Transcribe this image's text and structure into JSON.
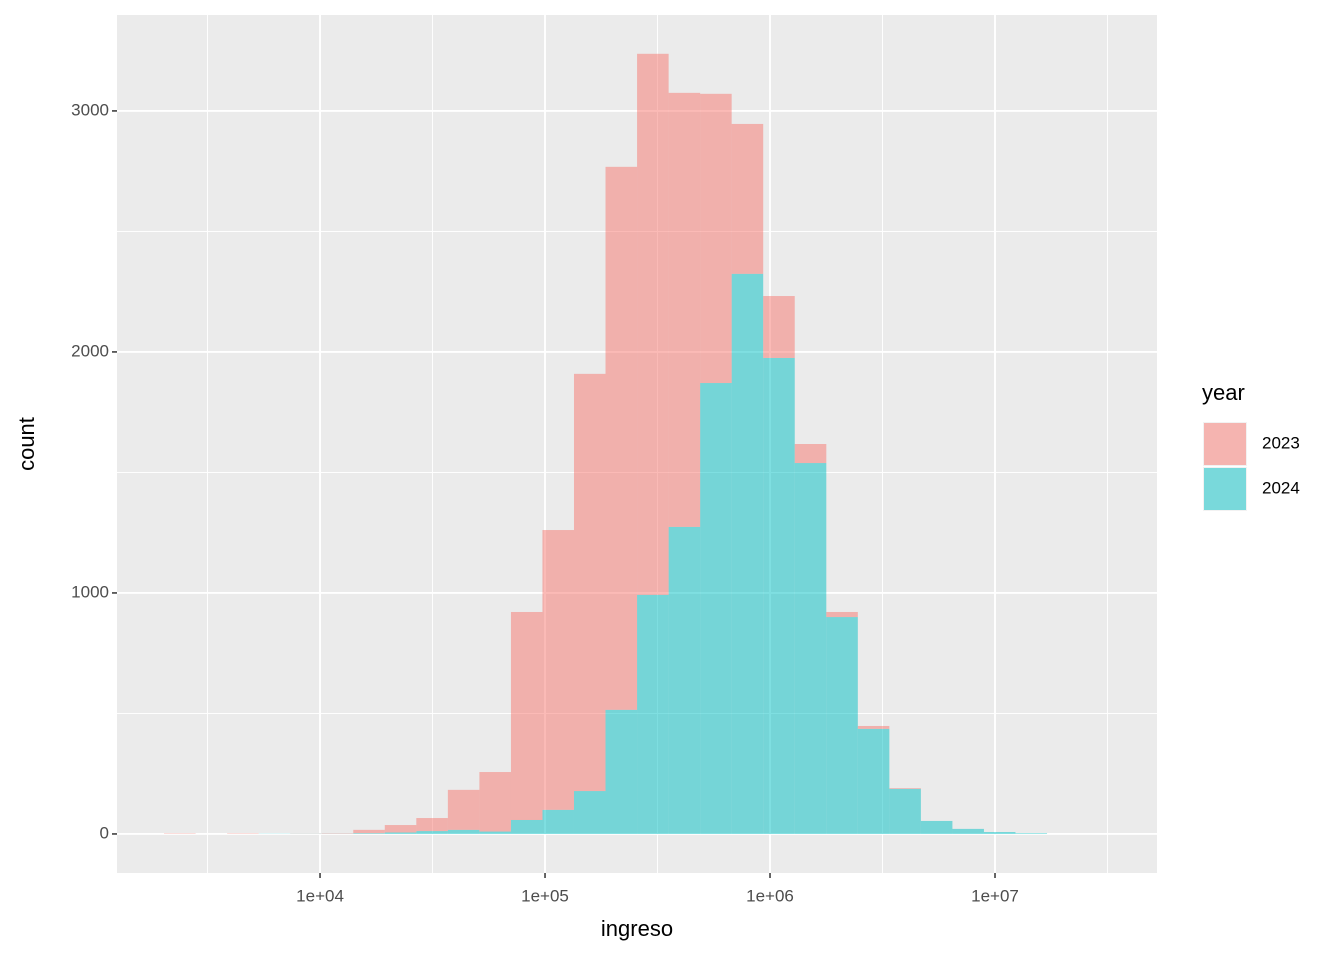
{
  "chart_data": {
    "type": "histogram",
    "stacked": true,
    "xscale": "log",
    "grid": true,
    "xlabel": "ingreso",
    "ylabel": "count",
    "legend_title": "year",
    "legend_position": "right",
    "bins": [
      2026,
      2799,
      3864,
      5337,
      7367,
      10174,
      14050,
      19400,
      26790,
      37000,
      51090,
      70560,
      97410,
      134500,
      185700,
      256500,
      354300,
      489100,
      675300,
      932600,
      1288000,
      1779000,
      2456000,
      3392000,
      4683000,
      6467000,
      8930000,
      12330000,
      17030000
    ],
    "series": [
      {
        "name": "2023",
        "color": "#F8766D",
        "values": [
          2,
          0,
          2,
          0,
          1,
          2,
          14,
          31,
          54,
          166,
          247,
          863,
          1161,
          1731,
          2253,
          2245,
          1801,
          1200,
          622,
          257,
          79,
          21,
          12,
          3,
          0,
          0,
          0,
          0
        ]
      },
      {
        "name": "2024",
        "color": "#00BFC4",
        "values": [
          0,
          0,
          0,
          1,
          1,
          1,
          3,
          6,
          12,
          17,
          10,
          58,
          100,
          178,
          515,
          992,
          1274,
          1871,
          2324,
          1975,
          1539,
          900,
          436,
          187,
          54,
          21,
          8,
          3
        ]
      }
    ],
    "xlim": [
      1252,
      52480000
    ],
    "ylim": [
      -162,
      3398
    ],
    "xticks": [
      {
        "value": 10000,
        "label": "1e+04"
      },
      {
        "value": 100000,
        "label": "1e+05"
      },
      {
        "value": 1000000,
        "label": "1e+06"
      },
      {
        "value": 10000000,
        "label": "1e+07"
      }
    ],
    "yticks": [
      0,
      1000,
      2000,
      3000
    ]
  }
}
